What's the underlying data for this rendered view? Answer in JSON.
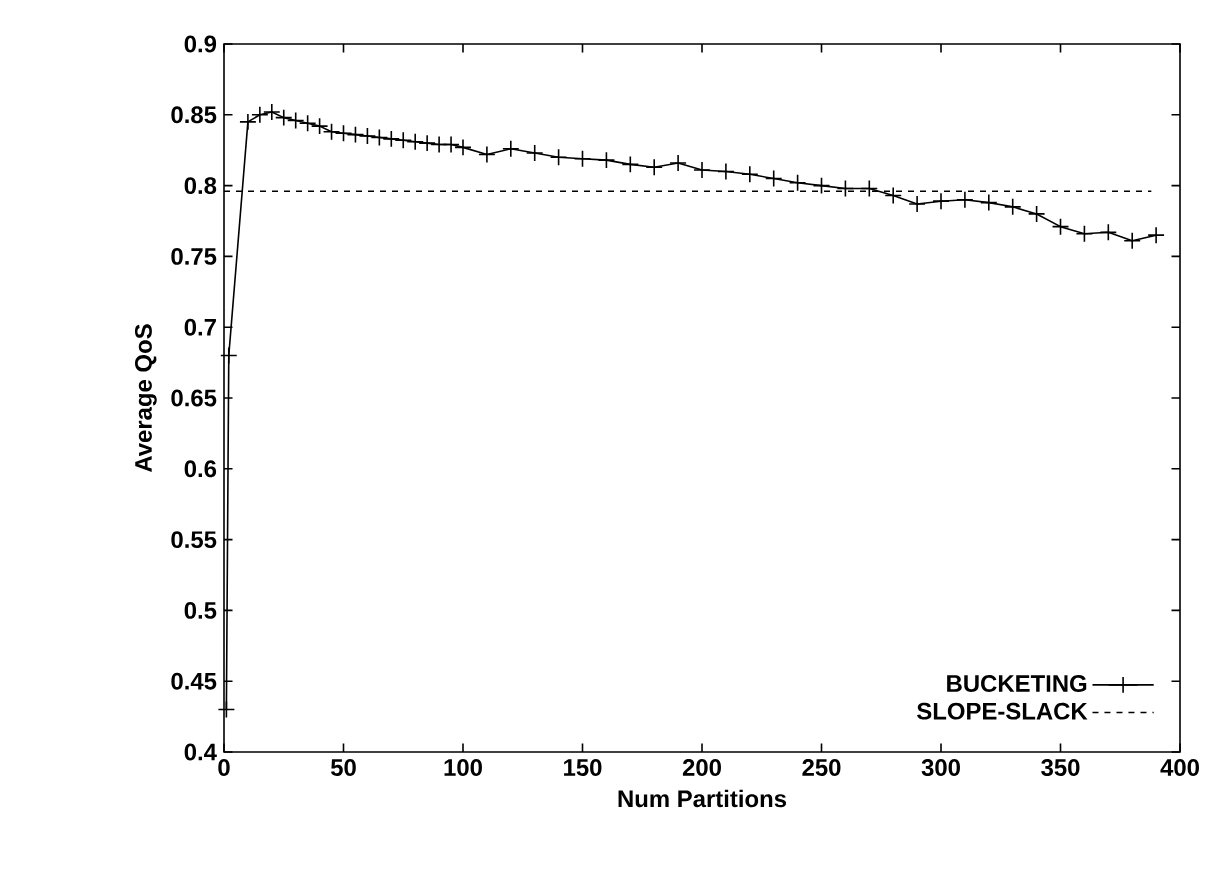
{
  "chart_data": {
    "type": "line",
    "xlabel": "Num Partitions",
    "ylabel": "Average QoS",
    "xlim": [
      0,
      400
    ],
    "ylim": [
      0.4,
      0.9
    ],
    "xticks": [
      0,
      50,
      100,
      150,
      200,
      250,
      300,
      350,
      400
    ],
    "yticks": [
      0.4,
      0.45,
      0.5,
      0.55,
      0.6,
      0.65,
      0.7,
      0.75,
      0.8,
      0.85,
      0.9
    ],
    "legend": "bottom right",
    "grid": false,
    "series": [
      {
        "name": "BUCKETING",
        "color": "#000000",
        "marker": "cross",
        "line_style": "solid",
        "x": [
          1,
          2,
          10,
          15,
          20,
          25,
          30,
          35,
          40,
          45,
          50,
          55,
          60,
          65,
          70,
          75,
          80,
          85,
          90,
          95,
          100,
          110,
          120,
          130,
          140,
          150,
          160,
          170,
          180,
          190,
          200,
          210,
          220,
          230,
          240,
          250,
          260,
          270,
          280,
          290,
          300,
          310,
          320,
          330,
          340,
          350,
          360,
          370,
          380,
          390
        ],
        "values": [
          0.43,
          0.68,
          0.845,
          0.85,
          0.852,
          0.848,
          0.846,
          0.844,
          0.842,
          0.838,
          0.837,
          0.836,
          0.835,
          0.834,
          0.833,
          0.832,
          0.831,
          0.83,
          0.829,
          0.829,
          0.827,
          0.822,
          0.826,
          0.823,
          0.82,
          0.819,
          0.818,
          0.815,
          0.813,
          0.816,
          0.811,
          0.81,
          0.808,
          0.805,
          0.802,
          0.8,
          0.798,
          0.798,
          0.793,
          0.787,
          0.789,
          0.79,
          0.788,
          0.785,
          0.78,
          0.771,
          0.766,
          0.767,
          0.761,
          0.765
        ]
      },
      {
        "name": "SLOPE-SLACK",
        "color": "#000000",
        "marker": "none",
        "line_style": "dashed",
        "x": [
          0,
          388
        ],
        "values": [
          0.796,
          0.796
        ]
      }
    ]
  }
}
